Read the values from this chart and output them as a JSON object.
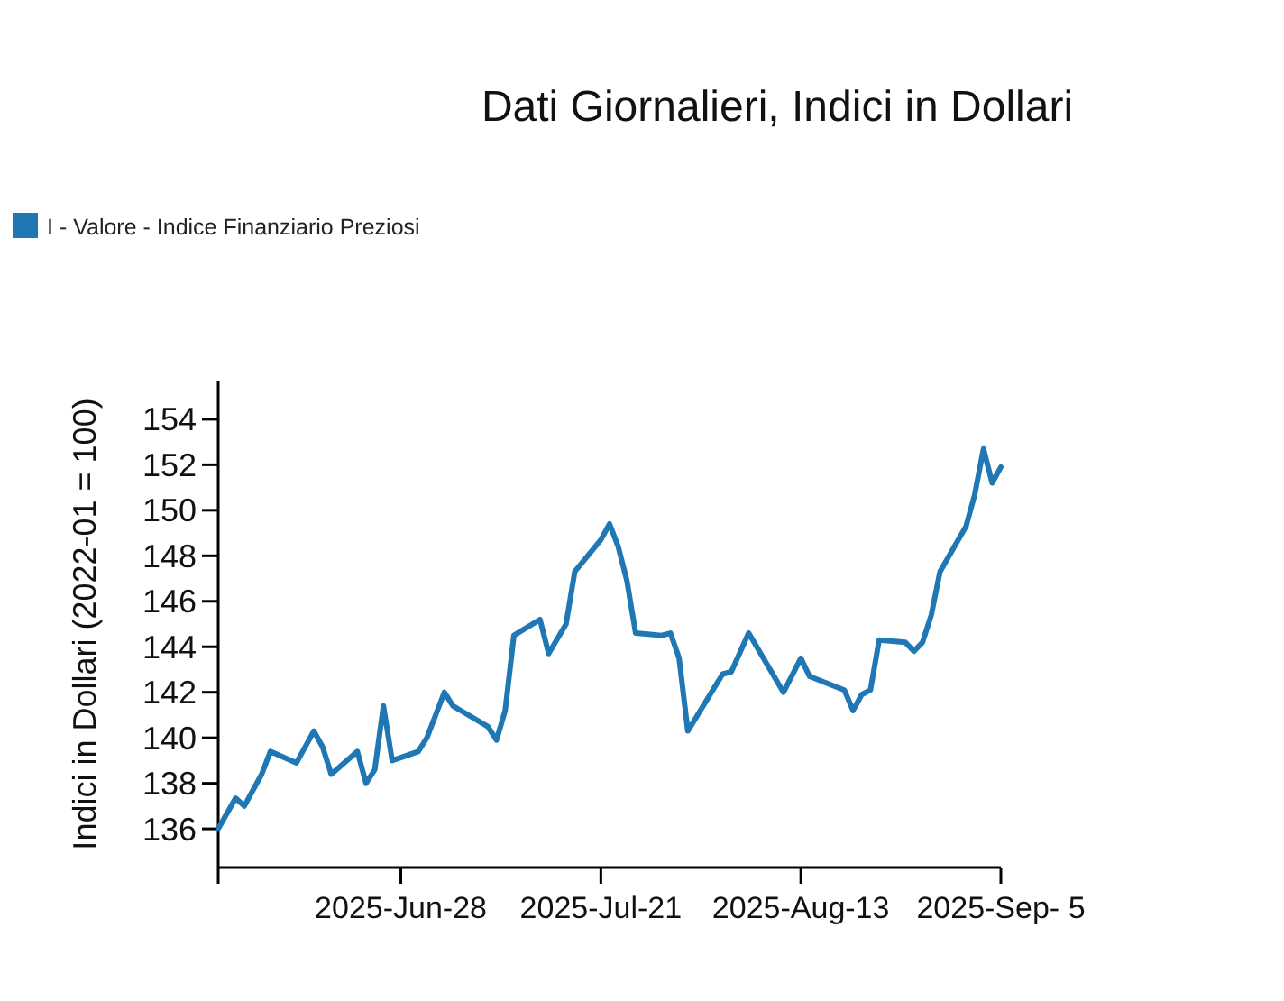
{
  "chart_data": {
    "type": "line",
    "title": "Dati Giornalieri, Indici in Dollari",
    "ylabel": "Indici in Dollari (2022-01 = 100)",
    "x": [
      "2025-06-07",
      "2025-06-09",
      "2025-06-10",
      "2025-06-12",
      "2025-06-13",
      "2025-06-16",
      "2025-06-18",
      "2025-06-19",
      "2025-06-20",
      "2025-06-23",
      "2025-06-24",
      "2025-06-25",
      "2025-06-26",
      "2025-06-27",
      "2025-06-30",
      "2025-07-01",
      "2025-07-03",
      "2025-07-04",
      "2025-07-08",
      "2025-07-09",
      "2025-07-10",
      "2025-07-11",
      "2025-07-14",
      "2025-07-15",
      "2025-07-17",
      "2025-07-18",
      "2025-07-21",
      "2025-07-22",
      "2025-07-23",
      "2025-07-24",
      "2025-07-25",
      "2025-07-28",
      "2025-07-29",
      "2025-07-30",
      "2025-07-31",
      "2025-08-04",
      "2025-08-05",
      "2025-08-07",
      "2025-08-11",
      "2025-08-13",
      "2025-08-14",
      "2025-08-18",
      "2025-08-19",
      "2025-08-20",
      "2025-08-21",
      "2025-08-22",
      "2025-08-25",
      "2025-08-26",
      "2025-08-27",
      "2025-08-28",
      "2025-08-29",
      "2025-09-01",
      "2025-09-02",
      "2025-09-03",
      "2025-09-04",
      "2025-09-05"
    ],
    "series": [
      {
        "name": "I - Valore - Indice Finanziario Preziosi",
        "color": "#1f77b4",
        "values": [
          136.0,
          137.35,
          137.0,
          138.4,
          139.4,
          138.9,
          140.3,
          139.6,
          138.4,
          139.4,
          138.0,
          138.6,
          141.4,
          139.0,
          139.4,
          140.0,
          142.0,
          141.4,
          140.5,
          139.9,
          141.2,
          144.5,
          145.2,
          143.7,
          145.0,
          147.3,
          148.7,
          149.4,
          148.4,
          146.9,
          144.6,
          144.5,
          144.6,
          143.5,
          140.3,
          142.8,
          142.9,
          144.6,
          142.0,
          143.5,
          142.7,
          142.1,
          141.2,
          141.9,
          142.1,
          144.3,
          144.2,
          143.8,
          144.2,
          145.4,
          147.3,
          149.3,
          150.7,
          152.7,
          151.2,
          151.9
        ]
      }
    ],
    "xlim": [
      "2025-06-07",
      "2025-09-05"
    ],
    "xticks": [
      {
        "value": "2025-06-07",
        "label": null
      },
      {
        "value": "2025-06-28",
        "label": "2025-Jun-28"
      },
      {
        "value": "2025-07-21",
        "label": "2025-Jul-21"
      },
      {
        "value": "2025-08-13",
        "label": "2025-Aug-13"
      },
      {
        "value": "2025-09-05",
        "label": "2025-Sep- 5"
      }
    ],
    "ylim": [
      134.3,
      155.7
    ],
    "yticks": [
      136,
      138,
      140,
      142,
      144,
      146,
      148,
      150,
      152,
      154
    ],
    "grid": false,
    "legend": "top left",
    "line_style": "solid",
    "marker": "none"
  }
}
